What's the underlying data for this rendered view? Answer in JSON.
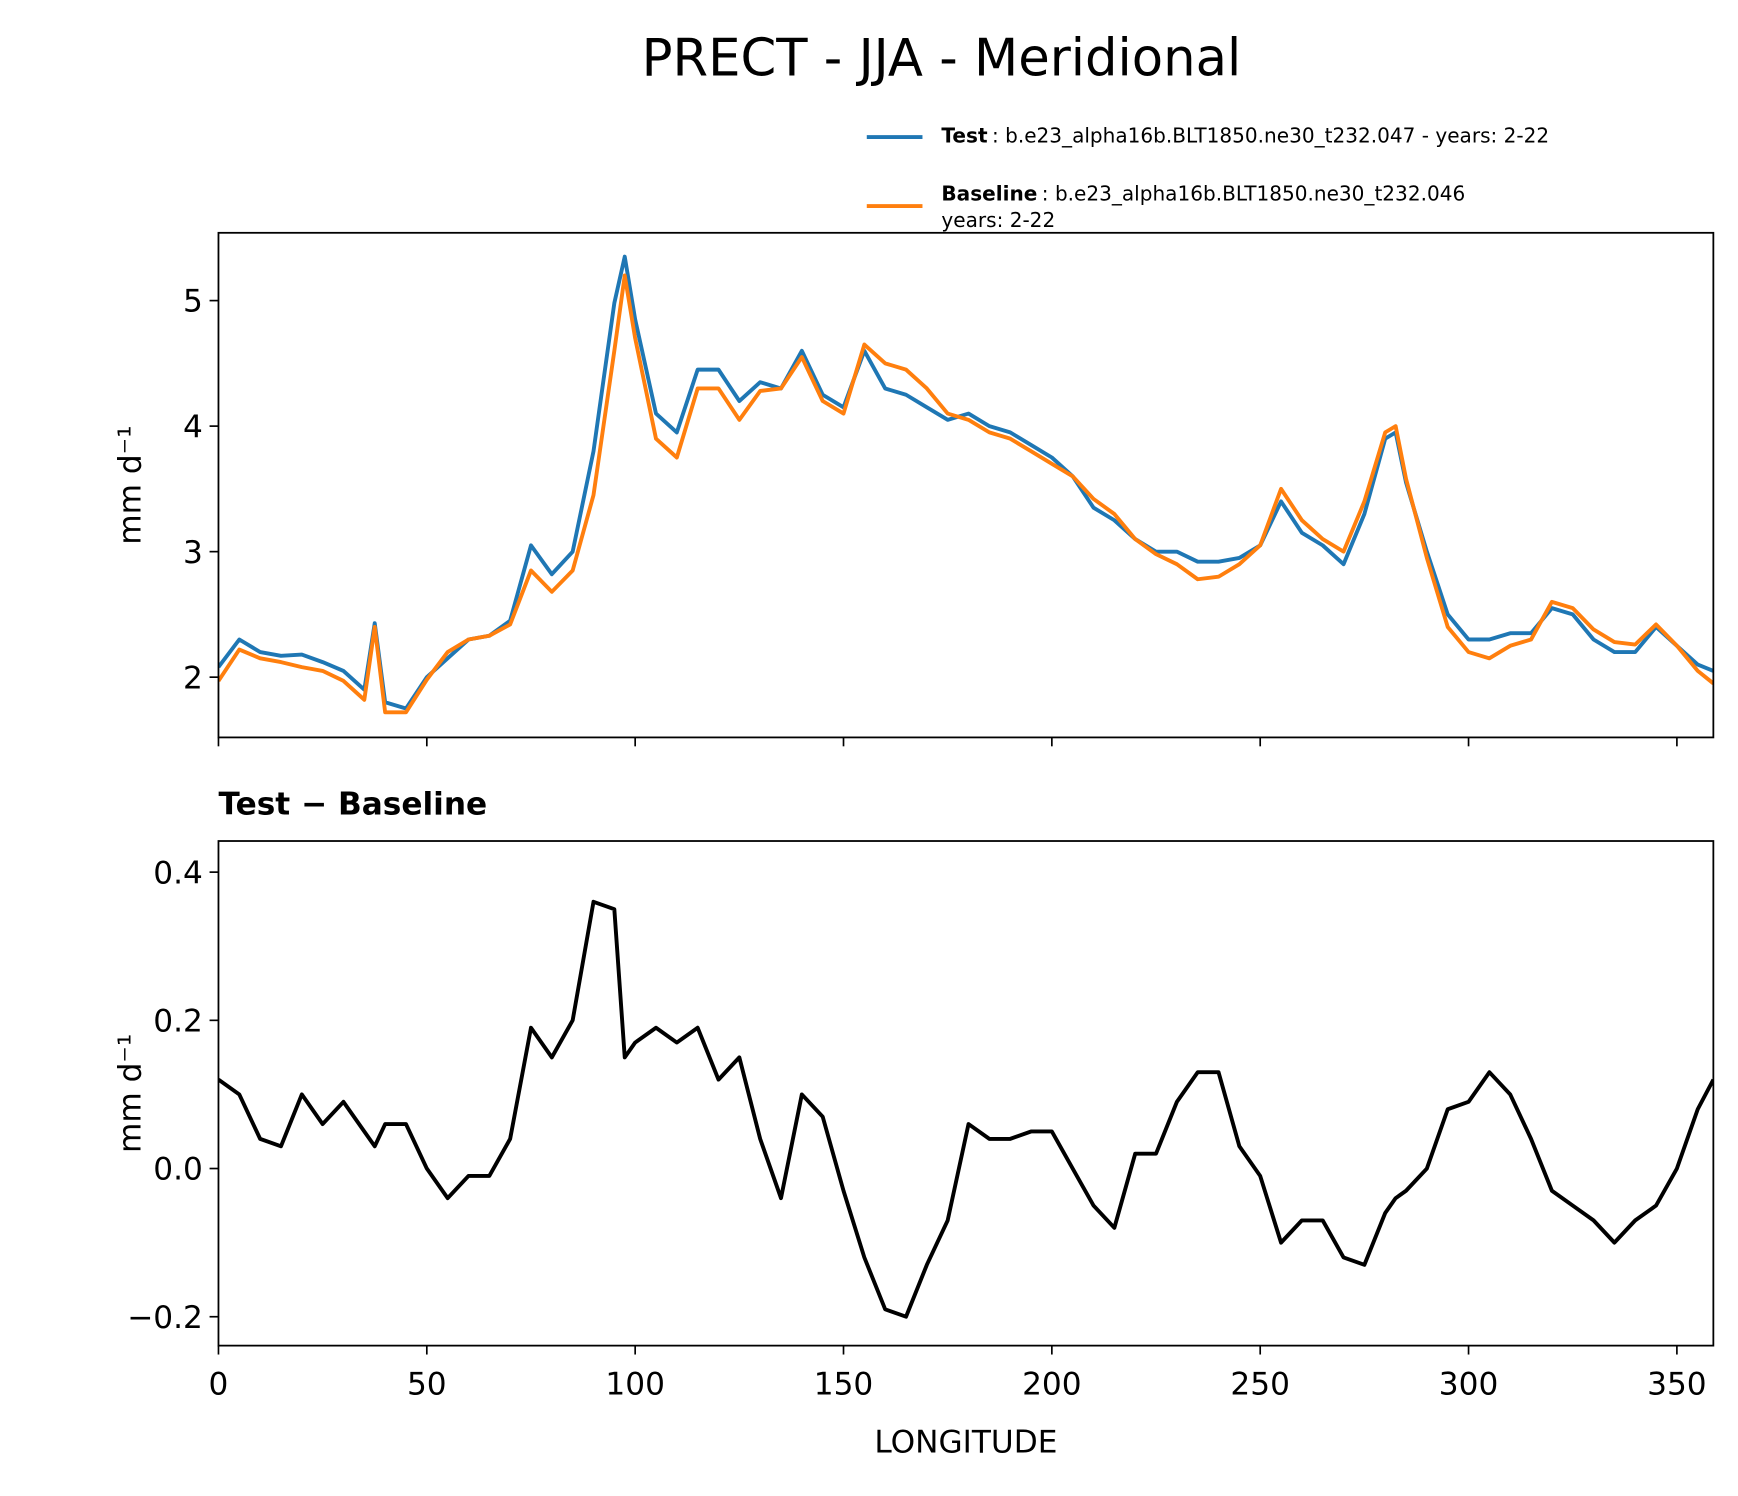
{
  "title": "PRECT - JJA - Meridional",
  "chart_data": [
    {
      "type": "line",
      "ylabel": "mm d⁻¹",
      "x": [
        0,
        5,
        10,
        15,
        20,
        25,
        30,
        35,
        37.5,
        40,
        45,
        50,
        55,
        60,
        65,
        70,
        75,
        80,
        85,
        90,
        95,
        97.5,
        100,
        105,
        110,
        115,
        120,
        125,
        130,
        135,
        140,
        145,
        150,
        155,
        160,
        165,
        170,
        175,
        180,
        185,
        190,
        195,
        200,
        205,
        210,
        215,
        220,
        225,
        230,
        235,
        240,
        245,
        250,
        255,
        260,
        265,
        270,
        275,
        280,
        282.5,
        285,
        290,
        295,
        300,
        305,
        310,
        315,
        320,
        325,
        330,
        335,
        340,
        345,
        350,
        355,
        358.75
      ],
      "series": [
        {
          "name": "Test",
          "description": [
            ": b.e23_alpha16b.BLT1850.ne30_t232.047 - years: 2-22"
          ],
          "color": "#1f77b4",
          "values": [
            2.08,
            2.3,
            2.2,
            2.17,
            2.18,
            2.12,
            2.05,
            1.9,
            2.43,
            1.8,
            1.75,
            2.0,
            2.15,
            2.3,
            2.33,
            2.45,
            3.05,
            2.82,
            3.0,
            3.8,
            4.98,
            5.35,
            4.85,
            4.1,
            3.95,
            4.45,
            4.45,
            4.2,
            4.35,
            4.3,
            4.6,
            4.25,
            4.15,
            4.6,
            4.3,
            4.25,
            4.15,
            4.05,
            4.1,
            4.0,
            3.95,
            3.85,
            3.75,
            3.6,
            3.35,
            3.25,
            3.1,
            3.0,
            3.0,
            2.92,
            2.92,
            2.95,
            3.05,
            3.4,
            3.15,
            3.05,
            2.9,
            3.3,
            3.9,
            3.95,
            3.55,
            3.0,
            2.5,
            2.3,
            2.3,
            2.35,
            2.35,
            2.55,
            2.5,
            2.3,
            2.2,
            2.2,
            2.4,
            2.25,
            2.1,
            2.05
          ]
        },
        {
          "name": "Baseline",
          "description": [
            ": b.e23_alpha16b.BLT1850.ne30_t232.046",
            "years: 2-22"
          ],
          "color": "#ff7f0e",
          "values": [
            1.97,
            2.22,
            2.15,
            2.12,
            2.08,
            2.05,
            1.97,
            1.82,
            2.4,
            1.72,
            1.72,
            1.98,
            2.2,
            2.3,
            2.33,
            2.42,
            2.85,
            2.68,
            2.85,
            3.45,
            4.6,
            5.2,
            4.7,
            3.9,
            3.75,
            4.3,
            4.3,
            4.05,
            4.28,
            4.3,
            4.55,
            4.2,
            4.1,
            4.65,
            4.5,
            4.45,
            4.3,
            4.1,
            4.05,
            3.95,
            3.9,
            3.8,
            3.7,
            3.6,
            3.42,
            3.3,
            3.1,
            2.98,
            2.9,
            2.78,
            2.8,
            2.9,
            3.05,
            3.5,
            3.25,
            3.1,
            3.0,
            3.4,
            3.95,
            4.0,
            3.58,
            2.95,
            2.4,
            2.2,
            2.15,
            2.25,
            2.3,
            2.6,
            2.55,
            2.38,
            2.28,
            2.26,
            2.42,
            2.25,
            2.05,
            1.95
          ]
        }
      ],
      "xlim": [
        0,
        358.75
      ],
      "xticks": [
        0,
        50,
        100,
        150,
        200,
        250,
        300,
        350
      ],
      "show_xtick_labels": false,
      "ylim": [
        1.52,
        5.54
      ],
      "yticks": [
        2,
        3,
        4,
        5
      ]
    },
    {
      "type": "line",
      "title": "Test − Baseline",
      "xlabel": "LONGITUDE",
      "ylabel": "mm d⁻¹",
      "x": [
        0,
        5,
        10,
        15,
        20,
        25,
        30,
        35,
        37.5,
        40,
        45,
        50,
        55,
        60,
        65,
        70,
        75,
        80,
        85,
        90,
        95,
        97.5,
        100,
        105,
        110,
        115,
        120,
        125,
        130,
        135,
        140,
        145,
        150,
        155,
        160,
        165,
        170,
        175,
        180,
        185,
        190,
        195,
        200,
        205,
        210,
        215,
        220,
        225,
        230,
        235,
        240,
        245,
        250,
        255,
        260,
        265,
        270,
        275,
        280,
        282.5,
        285,
        290,
        295,
        300,
        305,
        310,
        315,
        320,
        325,
        330,
        335,
        340,
        345,
        350,
        355,
        358.75
      ],
      "color": "#000000",
      "values": [
        0.12,
        0.1,
        0.04,
        0.03,
        0.1,
        0.06,
        0.09,
        0.05,
        0.03,
        0.06,
        0.06,
        0.0,
        -0.04,
        -0.01,
        -0.01,
        0.04,
        0.19,
        0.15,
        0.2,
        0.36,
        0.35,
        0.15,
        0.17,
        0.19,
        0.17,
        0.19,
        0.12,
        0.15,
        0.04,
        -0.04,
        0.1,
        0.07,
        -0.03,
        -0.12,
        -0.19,
        -0.2,
        -0.13,
        -0.07,
        0.06,
        0.04,
        0.04,
        0.05,
        0.05,
        0.0,
        -0.05,
        -0.08,
        0.02,
        0.02,
        0.09,
        0.13,
        0.13,
        0.03,
        -0.01,
        -0.1,
        -0.07,
        -0.07,
        -0.12,
        -0.13,
        -0.06,
        -0.04,
        -0.03,
        0.0,
        0.08,
        0.09,
        0.13,
        0.1,
        0.04,
        -0.03,
        -0.05,
        -0.07,
        -0.1,
        -0.07,
        -0.05,
        0.0,
        0.08,
        0.12
      ],
      "xlim": [
        0,
        358.75
      ],
      "xticks": [
        0,
        50,
        100,
        150,
        200,
        250,
        300,
        350
      ],
      "show_xtick_labels": true,
      "ylim": [
        -0.239,
        0.442
      ],
      "yticks": [
        {
          "value": -0.2,
          "label": "−0.2"
        },
        {
          "value": 0,
          "label": "0.0"
        },
        0.2,
        0.4
      ]
    }
  ]
}
